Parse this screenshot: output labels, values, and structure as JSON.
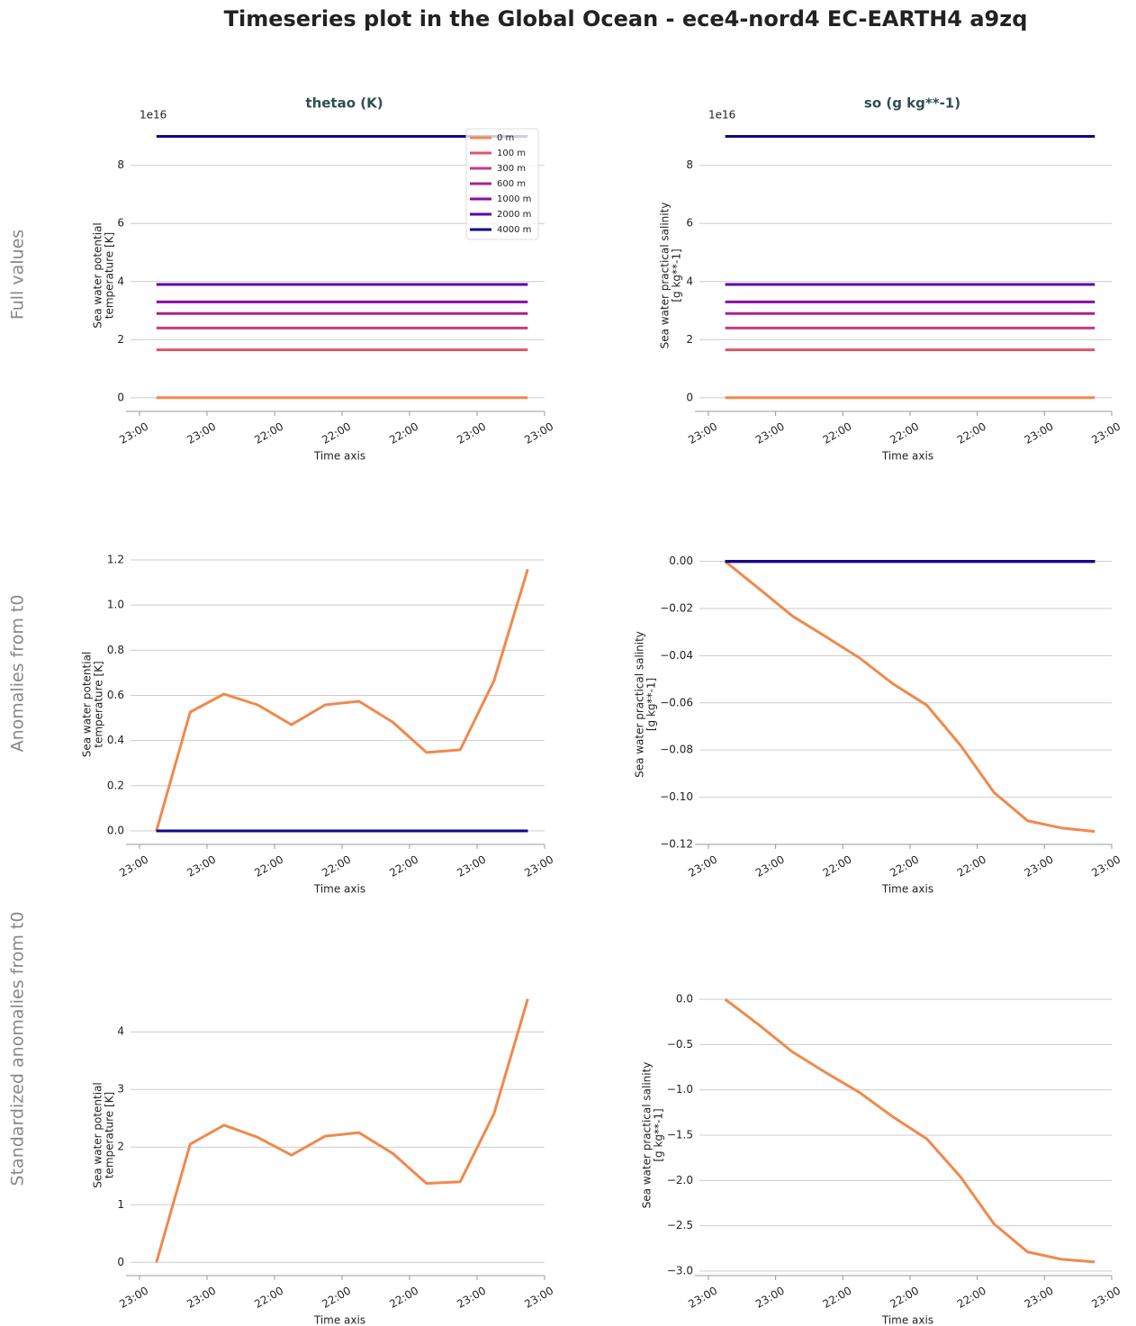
{
  "title": "Timeseries plot in the Global Ocean - ece4-nord4 EC-EARTH4 a9zq",
  "row_labels": [
    "Full values",
    "Anomalies from t0",
    "Standardized anomalies from t0"
  ],
  "chart_data": [
    {
      "type": "line",
      "title": "thetao (K)",
      "y_offset_label": "1e16",
      "ylabel": [
        "Sea water potential",
        "temperature [K]"
      ],
      "xlabel": "Time axis",
      "x": [
        0,
        1,
        2,
        3,
        4,
        5,
        6,
        7,
        8,
        9,
        10,
        11
      ],
      "xlim": [
        -0.9,
        11.5
      ],
      "xticks": [
        {
          "value": -0.5,
          "label": "23:00"
        },
        {
          "value": 1.5,
          "label": "23:00"
        },
        {
          "value": 3.5,
          "label": "22:00"
        },
        {
          "value": 5.5,
          "label": "22:00"
        },
        {
          "value": 7.5,
          "label": "22:00"
        },
        {
          "value": 9.5,
          "label": "23:00"
        },
        {
          "value": 11.5,
          "label": "23:00"
        }
      ],
      "ylim": [
        -0.47,
        9.2
      ],
      "yticks": [
        0,
        2,
        4,
        6,
        8
      ],
      "grid": true,
      "legend": "upper right",
      "series": [
        {
          "name": "0 m",
          "color": "#f0894c",
          "values": [
            0,
            0,
            0,
            0,
            0,
            0,
            0,
            0,
            0,
            0,
            0,
            0
          ]
        },
        {
          "name": "100 m",
          "color": "#d8576b",
          "values": [
            1.65,
            1.65,
            1.65,
            1.65,
            1.65,
            1.65,
            1.65,
            1.65,
            1.65,
            1.65,
            1.65,
            1.65
          ]
        },
        {
          "name": "300 m",
          "color": "#c23d80",
          "values": [
            2.4,
            2.4,
            2.4,
            2.4,
            2.4,
            2.4,
            2.4,
            2.4,
            2.4,
            2.4,
            2.4,
            2.4
          ]
        },
        {
          "name": "600 m",
          "color": "#a82296",
          "values": [
            2.9,
            2.9,
            2.9,
            2.9,
            2.9,
            2.9,
            2.9,
            2.9,
            2.9,
            2.9,
            2.9,
            2.9
          ]
        },
        {
          "name": "1000 m",
          "color": "#8b0aa5",
          "values": [
            3.3,
            3.3,
            3.3,
            3.3,
            3.3,
            3.3,
            3.3,
            3.3,
            3.3,
            3.3,
            3.3,
            3.3
          ]
        },
        {
          "name": "2000 m",
          "color": "#5c01a6",
          "values": [
            3.9,
            3.9,
            3.9,
            3.9,
            3.9,
            3.9,
            3.9,
            3.9,
            3.9,
            3.9,
            3.9,
            3.9
          ]
        },
        {
          "name": "4000 m",
          "color": "#0d0887",
          "values": [
            9.0,
            9.0,
            9.0,
            9.0,
            9.0,
            9.0,
            9.0,
            9.0,
            9.0,
            9.0,
            9.0,
            9.0
          ]
        }
      ]
    },
    {
      "type": "line",
      "title": "so (g kg**-1)",
      "y_offset_label": "1e16",
      "ylabel": [
        "Sea water practical salinity",
        "[g kg**-1]"
      ],
      "xlabel": "Time axis",
      "x": [
        0,
        1,
        2,
        3,
        4,
        5,
        6,
        7,
        8,
        9,
        10,
        11
      ],
      "xlim": [
        -0.9,
        11.5
      ],
      "xticks": [
        {
          "value": -0.5,
          "label": "23:00"
        },
        {
          "value": 1.5,
          "label": "23:00"
        },
        {
          "value": 3.5,
          "label": "22:00"
        },
        {
          "value": 5.5,
          "label": "22:00"
        },
        {
          "value": 7.5,
          "label": "22:00"
        },
        {
          "value": 9.5,
          "label": "23:00"
        },
        {
          "value": 11.5,
          "label": "23:00"
        }
      ],
      "ylim": [
        -0.47,
        9.2
      ],
      "yticks": [
        0,
        2,
        4,
        6,
        8
      ],
      "grid": true,
      "series": [
        {
          "color": "#f0894c",
          "values": [
            0,
            0,
            0,
            0,
            0,
            0,
            0,
            0,
            0,
            0,
            0,
            0
          ]
        },
        {
          "color": "#d8576b",
          "values": [
            1.65,
            1.65,
            1.65,
            1.65,
            1.65,
            1.65,
            1.65,
            1.65,
            1.65,
            1.65,
            1.65,
            1.65
          ]
        },
        {
          "color": "#c23d80",
          "values": [
            2.4,
            2.4,
            2.4,
            2.4,
            2.4,
            2.4,
            2.4,
            2.4,
            2.4,
            2.4,
            2.4,
            2.4
          ]
        },
        {
          "color": "#a82296",
          "values": [
            2.9,
            2.9,
            2.9,
            2.9,
            2.9,
            2.9,
            2.9,
            2.9,
            2.9,
            2.9,
            2.9,
            2.9
          ]
        },
        {
          "color": "#8b0aa5",
          "values": [
            3.3,
            3.3,
            3.3,
            3.3,
            3.3,
            3.3,
            3.3,
            3.3,
            3.3,
            3.3,
            3.3,
            3.3
          ]
        },
        {
          "color": "#5c01a6",
          "values": [
            3.9,
            3.9,
            3.9,
            3.9,
            3.9,
            3.9,
            3.9,
            3.9,
            3.9,
            3.9,
            3.9,
            3.9
          ]
        },
        {
          "color": "#0d0887",
          "values": [
            9.0,
            9.0,
            9.0,
            9.0,
            9.0,
            9.0,
            9.0,
            9.0,
            9.0,
            9.0,
            9.0,
            9.0
          ]
        }
      ]
    },
    {
      "type": "line",
      "ylabel": [
        "Sea water potential",
        "temperature [K]"
      ],
      "xlabel": "Time axis",
      "x": [
        0,
        1,
        2,
        3,
        4,
        5,
        6,
        7,
        8,
        9,
        10,
        11
      ],
      "xlim": [
        -0.9,
        11.5
      ],
      "xticks": [
        {
          "value": -0.5,
          "label": "23:00"
        },
        {
          "value": 1.5,
          "label": "23:00"
        },
        {
          "value": 3.5,
          "label": "22:00"
        },
        {
          "value": 5.5,
          "label": "22:00"
        },
        {
          "value": 7.5,
          "label": "22:00"
        },
        {
          "value": 9.5,
          "label": "23:00"
        },
        {
          "value": 11.5,
          "label": "23:00"
        }
      ],
      "ylim": [
        -0.06,
        1.22
      ],
      "yticks": [
        {
          "value": 0,
          "label": "0.0"
        },
        0.2,
        0.4,
        0.6,
        0.8,
        {
          "value": 1,
          "label": "1.0"
        },
        1.2
      ],
      "grid": true,
      "series": [
        {
          "color": "#f0894c",
          "values": [
            0,
            0.526,
            0.606,
            0.558,
            0.47,
            0.558,
            0.574,
            0.482,
            0.347,
            0.359,
            0.665,
            1.159
          ]
        },
        {
          "color": "#d8576b",
          "values": [
            0,
            0,
            0,
            0,
            0,
            0,
            0,
            0,
            0,
            0,
            0,
            0
          ]
        },
        {
          "color": "#c23d80",
          "values": [
            0,
            0,
            0,
            0,
            0,
            0,
            0,
            0,
            0,
            0,
            0,
            0
          ]
        },
        {
          "color": "#a82296",
          "values": [
            0,
            0,
            0,
            0,
            0,
            0,
            0,
            0,
            0,
            0,
            0,
            0
          ]
        },
        {
          "color": "#8b0aa5",
          "values": [
            0,
            0,
            0,
            0,
            0,
            0,
            0,
            0,
            0,
            0,
            0,
            0
          ]
        },
        {
          "color": "#5c01a6",
          "values": [
            0,
            0,
            0,
            0,
            0,
            0,
            0,
            0,
            0,
            0,
            0,
            0
          ]
        },
        {
          "color": "#0d0887",
          "values": [
            0,
            0,
            0,
            0,
            0,
            0,
            0,
            0,
            0,
            0,
            0,
            0
          ]
        }
      ]
    },
    {
      "type": "line",
      "ylabel": [
        "Sea water practical salinity",
        "[g kg**-1]"
      ],
      "xlabel": "Time axis",
      "x": [
        0,
        1,
        2,
        3,
        4,
        5,
        6,
        7,
        8,
        9,
        10,
        11
      ],
      "xlim": [
        -0.9,
        11.5
      ],
      "xticks": [
        {
          "value": -0.5,
          "label": "23:00"
        },
        {
          "value": 1.5,
          "label": "23:00"
        },
        {
          "value": 3.5,
          "label": "22:00"
        },
        {
          "value": 5.5,
          "label": "22:00"
        },
        {
          "value": 7.5,
          "label": "22:00"
        },
        {
          "value": 9.5,
          "label": "23:00"
        },
        {
          "value": 11.5,
          "label": "23:00"
        }
      ],
      "ylim": [
        -0.12,
        0.0025
      ],
      "yticks": [
        {
          "value": 0,
          "label": "0.00"
        },
        {
          "value": -0.02,
          "label": "−0.02"
        },
        {
          "value": -0.04,
          "label": "−0.04"
        },
        {
          "value": -0.06,
          "label": "−0.06"
        },
        {
          "value": -0.08,
          "label": "−0.08"
        },
        {
          "value": -0.1,
          "label": "−0.10"
        },
        {
          "value": -0.12,
          "label": "−0.12"
        }
      ],
      "grid": true,
      "series": [
        {
          "color": "#f0894c",
          "values": [
            0,
            -0.0115,
            -0.0232,
            -0.032,
            -0.041,
            -0.052,
            -0.061,
            -0.078,
            -0.098,
            -0.11,
            -0.113,
            -0.1145
          ]
        },
        {
          "color": "#d8576b",
          "values": [
            0,
            0,
            0,
            0,
            0,
            0,
            0,
            0,
            0,
            0,
            0,
            0
          ]
        },
        {
          "color": "#c23d80",
          "values": [
            0,
            0,
            0,
            0,
            0,
            0,
            0,
            0,
            0,
            0,
            0,
            0
          ]
        },
        {
          "color": "#a82296",
          "values": [
            0,
            0,
            0,
            0,
            0,
            0,
            0,
            0,
            0,
            0,
            0,
            0
          ]
        },
        {
          "color": "#8b0aa5",
          "values": [
            0,
            0,
            0,
            0,
            0,
            0,
            0,
            0,
            0,
            0,
            0,
            0
          ]
        },
        {
          "color": "#5c01a6",
          "values": [
            0,
            0,
            0,
            0,
            0,
            0,
            0,
            0,
            0,
            0,
            0,
            0
          ]
        },
        {
          "color": "#0d0887",
          "values": [
            0,
            0,
            0,
            0,
            0,
            0,
            0,
            0,
            0,
            0,
            0,
            0
          ]
        }
      ]
    },
    {
      "type": "line",
      "ylabel": [
        "Sea water potential",
        "temperature [K]"
      ],
      "xlabel": "Time axis",
      "x": [
        0,
        1,
        2,
        3,
        4,
        5,
        6,
        7,
        8,
        9,
        10,
        11
      ],
      "xlim": [
        -0.9,
        11.5
      ],
      "xticks": [
        {
          "value": -0.5,
          "label": "23:00"
        },
        {
          "value": 1.5,
          "label": "23:00"
        },
        {
          "value": 3.5,
          "label": "22:00"
        },
        {
          "value": 5.5,
          "label": "22:00"
        },
        {
          "value": 7.5,
          "label": "22:00"
        },
        {
          "value": 9.5,
          "label": "23:00"
        },
        {
          "value": 11.5,
          "label": "23:00"
        }
      ],
      "ylim": [
        -0.23,
        4.8
      ],
      "yticks": [
        0,
        1,
        2,
        3,
        4
      ],
      "grid": true,
      "series": [
        {
          "color": "#f0894c",
          "values": [
            0,
            2.05,
            2.38,
            2.17,
            1.86,
            2.19,
            2.25,
            1.89,
            1.37,
            1.4,
            2.58,
            4.57
          ]
        }
      ]
    },
    {
      "type": "line",
      "ylabel": [
        "Sea water practical salinity",
        "[g kg**-1]"
      ],
      "xlabel": "Time axis",
      "x": [
        0,
        1,
        2,
        3,
        4,
        5,
        6,
        7,
        8,
        9,
        10,
        11
      ],
      "xlim": [
        -0.9,
        11.5
      ],
      "xticks": [
        {
          "value": -0.5,
          "label": "23:00"
        },
        {
          "value": 1.5,
          "label": "23:00"
        },
        {
          "value": 3.5,
          "label": "22:00"
        },
        {
          "value": 5.5,
          "label": "22:00"
        },
        {
          "value": 7.5,
          "label": "22:00"
        },
        {
          "value": 9.5,
          "label": "23:00"
        },
        {
          "value": 11.5,
          "label": "23:00"
        }
      ],
      "ylim": [
        -3.05,
        0.15
      ],
      "yticks": [
        {
          "value": 0,
          "label": "0.0"
        },
        {
          "value": -0.5,
          "label": "−0.5"
        },
        {
          "value": -1,
          "label": "−1.0"
        },
        {
          "value": -1.5,
          "label": "−1.5"
        },
        {
          "value": -2,
          "label": "−2.0"
        },
        {
          "value": -2.5,
          "label": "−2.5"
        },
        {
          "value": -3,
          "label": "−3.0"
        }
      ],
      "grid": true,
      "series": [
        {
          "color": "#f0894c",
          "values": [
            0,
            -0.28,
            -0.58,
            -0.81,
            -1.03,
            -1.3,
            -1.54,
            -1.96,
            -2.48,
            -2.79,
            -2.87,
            -2.9
          ]
        }
      ]
    }
  ]
}
